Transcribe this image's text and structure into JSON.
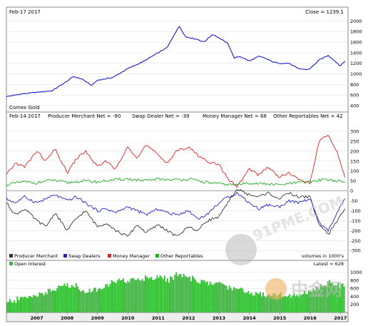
{
  "chart_data": [
    {
      "type": "line",
      "header_left": "Feb-17  2017",
      "header_right": "Close = 1239.1",
      "caption": "Comex Gold",
      "ylim": [
        400,
        2100
      ],
      "y_ticks": [
        400,
        600,
        800,
        1000,
        1200,
        1400,
        1600,
        1800,
        2000
      ],
      "grid": true,
      "series": [
        {
          "color": "#1a1acc",
          "x": [
            2006.0,
            2006.5,
            2007.0,
            2007.5,
            2008.0,
            2008.2,
            2008.5,
            2008.8,
            2009.0,
            2009.5,
            2010.0,
            2010.5,
            2011.0,
            2011.3,
            2011.6,
            2011.7,
            2011.9,
            2012.0,
            2012.3,
            2012.5,
            2012.8,
            2013.0,
            2013.3,
            2013.5,
            2013.7,
            2014.0,
            2014.3,
            2014.5,
            2014.8,
            2015.0,
            2015.3,
            2015.6,
            2015.9,
            2016.0,
            2016.3,
            2016.6,
            2016.9,
            2017.0,
            2017.15
          ],
          "values": [
            570,
            620,
            650,
            680,
            860,
            950,
            900,
            780,
            880,
            930,
            1100,
            1230,
            1400,
            1500,
            1820,
            1900,
            1700,
            1690,
            1650,
            1600,
            1750,
            1680,
            1570,
            1300,
            1330,
            1240,
            1330,
            1300,
            1220,
            1200,
            1200,
            1100,
            1080,
            1100,
            1260,
            1350,
            1200,
            1150,
            1239
          ]
        }
      ]
    },
    {
      "type": "line",
      "header_left": "Feb-14  2017",
      "labels": [
        "Producer Merchant Net = -90",
        "Swap Dealer Net = -39",
        "Money Manager Net = 68",
        "Other Reportables Net = 42"
      ],
      "ylim": [
        -310,
        350
      ],
      "y_ticks": [
        -300,
        -250,
        -200,
        -150,
        -100,
        -50,
        0,
        50,
        100,
        150,
        200,
        250,
        300
      ],
      "grid": true,
      "units_note": "volumes in 1000's",
      "legend": [
        "Producer Merchant",
        "Swap Dealers",
        "Money Manager",
        "Other Reportables"
      ],
      "series": [
        {
          "color": "#333333",
          "x": [
            2006.0,
            2006.3,
            2006.6,
            2007.0,
            2007.3,
            2007.6,
            2008.0,
            2008.3,
            2008.6,
            2009.0,
            2009.3,
            2009.6,
            2010.0,
            2010.3,
            2010.6,
            2011.0,
            2011.3,
            2011.6,
            2012.0,
            2012.3,
            2012.6,
            2013.0,
            2013.3,
            2013.6,
            2014.0,
            2014.3,
            2014.6,
            2015.0,
            2015.3,
            2015.6,
            2016.0,
            2016.3,
            2016.6,
            2016.9,
            2017.15
          ],
          "values": [
            -60,
            -120,
            -90,
            -150,
            -180,
            -110,
            -200,
            -140,
            -100,
            -180,
            -160,
            -200,
            -230,
            -170,
            -210,
            -170,
            -200,
            -230,
            -180,
            -200,
            -150,
            -130,
            -60,
            10,
            -20,
            -30,
            -10,
            -40,
            -10,
            -30,
            -30,
            -160,
            -220,
            -150,
            -90
          ]
        },
        {
          "color": "#2222cc",
          "x": [
            2006.0,
            2006.3,
            2006.6,
            2007.0,
            2007.3,
            2007.6,
            2008.0,
            2008.3,
            2008.6,
            2009.0,
            2009.3,
            2009.6,
            2010.0,
            2010.3,
            2010.6,
            2011.0,
            2011.3,
            2011.6,
            2012.0,
            2012.3,
            2012.6,
            2013.0,
            2013.3,
            2013.6,
            2014.0,
            2014.3,
            2014.6,
            2015.0,
            2015.3,
            2015.6,
            2016.0,
            2016.3,
            2016.6,
            2016.9,
            2017.15
          ],
          "values": [
            -40,
            -60,
            -30,
            -60,
            -40,
            -20,
            -50,
            -30,
            -60,
            -100,
            -90,
            -110,
            -80,
            -100,
            -120,
            -90,
            -110,
            -120,
            -100,
            -140,
            -120,
            -60,
            -30,
            -10,
            -60,
            -90,
            -70,
            -80,
            -50,
            -60,
            -40,
            -170,
            -200,
            -110,
            -39
          ]
        },
        {
          "color": "#dd2222",
          "x": [
            2006.0,
            2006.3,
            2006.6,
            2007.0,
            2007.3,
            2007.6,
            2008.0,
            2008.3,
            2008.6,
            2009.0,
            2009.3,
            2009.6,
            2010.0,
            2010.3,
            2010.6,
            2011.0,
            2011.3,
            2011.6,
            2012.0,
            2012.3,
            2012.6,
            2013.0,
            2013.3,
            2013.6,
            2014.0,
            2014.3,
            2014.6,
            2015.0,
            2015.3,
            2015.6,
            2016.0,
            2016.3,
            2016.6,
            2016.9,
            2017.15
          ],
          "values": [
            80,
            140,
            120,
            200,
            150,
            210,
            90,
            160,
            200,
            120,
            150,
            110,
            220,
            170,
            230,
            180,
            140,
            200,
            220,
            180,
            150,
            130,
            60,
            20,
            110,
            80,
            120,
            70,
            90,
            60,
            40,
            250,
            280,
            190,
            68
          ]
        },
        {
          "color": "#22aa22",
          "x": [
            2006.0,
            2006.5,
            2007.0,
            2007.5,
            2008.0,
            2008.5,
            2009.0,
            2009.5,
            2010.0,
            2010.5,
            2011.0,
            2011.5,
            2012.0,
            2012.5,
            2013.0,
            2013.5,
            2014.0,
            2014.5,
            2015.0,
            2015.5,
            2016.0,
            2016.5,
            2017.15
          ],
          "values": [
            30,
            45,
            40,
            55,
            40,
            50,
            45,
            55,
            60,
            50,
            60,
            55,
            60,
            45,
            35,
            30,
            40,
            35,
            30,
            40,
            45,
            60,
            42
          ]
        }
      ]
    },
    {
      "type": "bar",
      "label": "Open Interest",
      "header_right": "Latest = 628",
      "color": "#33bb33",
      "ylim": [
        0,
        1100
      ],
      "y_ticks": [
        200,
        400,
        600,
        800,
        1000
      ],
      "x_ticks": [
        "2007",
        "2008",
        "2009",
        "2010",
        "2011",
        "2012",
        "2013",
        "2014",
        "2015",
        "2016",
        "2017"
      ],
      "x": [
        2006.0,
        2006.5,
        2007.0,
        2007.5,
        2008.0,
        2008.3,
        2008.6,
        2009.0,
        2009.5,
        2010.0,
        2010.5,
        2011.0,
        2011.3,
        2011.6,
        2012.0,
        2012.5,
        2013.0,
        2013.5,
        2014.0,
        2014.5,
        2015.0,
        2015.5,
        2016.0,
        2016.3,
        2016.6,
        2017.15
      ],
      "values": [
        250,
        350,
        450,
        550,
        700,
        650,
        500,
        600,
        750,
        800,
        850,
        900,
        800,
        950,
        850,
        750,
        700,
        600,
        500,
        450,
        450,
        430,
        500,
        650,
        750,
        628
      ]
    }
  ],
  "watermarks": [
    "91PME.COM",
    "中金网"
  ]
}
